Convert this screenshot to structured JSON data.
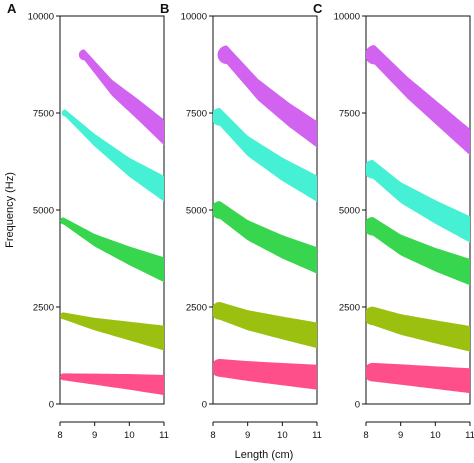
{
  "figure": {
    "xlabel": "Length (cm)",
    "ylabel": "Frequency (Hz)"
  },
  "chart_data": [
    {
      "type": "line",
      "panel": "A",
      "xlim": [
        8,
        11
      ],
      "ylim": [
        0,
        10000
      ],
      "x_ticks": [
        8,
        9,
        10,
        11
      ],
      "y_ticks": [
        0,
        2500,
        5000,
        7500,
        10000
      ],
      "grid": false,
      "series": [
        {
          "color": "#ff4f8b",
          "width": [
            90,
            260
          ],
          "points": [
            [
              8.1,
              700
            ],
            [
              9,
              640
            ],
            [
              10,
              570
            ],
            [
              11,
              490
            ]
          ]
        },
        {
          "color": "#9bc010",
          "width": [
            90,
            320
          ],
          "points": [
            [
              8.1,
              2270
            ],
            [
              9,
              2060
            ],
            [
              10,
              1880
            ],
            [
              11,
              1700
            ]
          ]
        },
        {
          "color": "#38d64f",
          "width": [
            90,
            320
          ],
          "points": [
            [
              8.1,
              4720
            ],
            [
              9,
              4220
            ],
            [
              10,
              3820
            ],
            [
              11,
              3460
            ]
          ]
        },
        {
          "color": "#46f0d4",
          "width": [
            90,
            330
          ],
          "points": [
            [
              8.15,
              7500
            ],
            [
              9,
              6800
            ],
            [
              10,
              6100
            ],
            [
              11,
              5550
            ]
          ]
        },
        {
          "color": "#d163f0",
          "width": [
            140,
            330
          ],
          "points": [
            [
              8.7,
              9000
            ],
            [
              9.5,
              8150
            ],
            [
              10.3,
              7550
            ],
            [
              11,
              7000
            ]
          ]
        }
      ]
    },
    {
      "type": "line",
      "panel": "B",
      "xlim": [
        8,
        11
      ],
      "ylim": [
        0,
        10000
      ],
      "x_ticks": [
        8,
        9,
        10,
        11
      ],
      "y_ticks": [
        0,
        2500,
        5000,
        7500,
        10000
      ],
      "grid": false,
      "series": [
        {
          "color": "#ff4f8b",
          "width": [
            230,
            320
          ],
          "points": [
            [
              8.2,
              930
            ],
            [
              9,
              850
            ],
            [
              10,
              770
            ],
            [
              11,
              690
            ]
          ]
        },
        {
          "color": "#9bc010",
          "width": [
            230,
            330
          ],
          "points": [
            [
              8.2,
              2400
            ],
            [
              9,
              2160
            ],
            [
              10,
              1960
            ],
            [
              11,
              1770
            ]
          ]
        },
        {
          "color": "#38d64f",
          "width": [
            230,
            340
          ],
          "points": [
            [
              8.2,
              5000
            ],
            [
              9,
              4480
            ],
            [
              10,
              4050
            ],
            [
              11,
              3700
            ]
          ]
        },
        {
          "color": "#46f0d4",
          "width": [
            230,
            340
          ],
          "points": [
            [
              8.2,
              7400
            ],
            [
              9,
              6650
            ],
            [
              10,
              6050
            ],
            [
              11,
              5550
            ]
          ]
        },
        {
          "color": "#d163f0",
          "width": [
            240,
            340
          ],
          "points": [
            [
              8.4,
              9000
            ],
            [
              9.3,
              8100
            ],
            [
              10.2,
              7450
            ],
            [
              11,
              6950
            ]
          ]
        }
      ]
    },
    {
      "type": "line",
      "panel": "C",
      "xlim": [
        8,
        11
      ],
      "ylim": [
        0,
        10000
      ],
      "x_ticks": [
        8,
        9,
        10,
        11
      ],
      "y_ticks": [
        0,
        2500,
        5000,
        7500,
        10000
      ],
      "grid": false,
      "series": [
        {
          "color": "#ff4f8b",
          "width": [
            240,
            320
          ],
          "points": [
            [
              8.2,
              820
            ],
            [
              9,
              760
            ],
            [
              10,
              680
            ],
            [
              11,
              600
            ]
          ]
        },
        {
          "color": "#9bc010",
          "width": [
            240,
            330
          ],
          "points": [
            [
              8.2,
              2270
            ],
            [
              9,
              2050
            ],
            [
              10,
              1860
            ],
            [
              11,
              1680
            ]
          ]
        },
        {
          "color": "#38d64f",
          "width": [
            240,
            340
          ],
          "points": [
            [
              8.2,
              4580
            ],
            [
              9,
              4100
            ],
            [
              10,
              3720
            ],
            [
              11,
              3400
            ]
          ]
        },
        {
          "color": "#46f0d4",
          "width": [
            240,
            340
          ],
          "points": [
            [
              8.2,
              6050
            ],
            [
              9,
              5450
            ],
            [
              10,
              4950
            ],
            [
              11,
              4500
            ]
          ]
        },
        {
          "color": "#d163f0",
          "width": [
            250,
            340
          ],
          "points": [
            [
              8.25,
              9000
            ],
            [
              9.2,
              8150
            ],
            [
              10.1,
              7450
            ],
            [
              11,
              6750
            ]
          ]
        }
      ]
    }
  ]
}
